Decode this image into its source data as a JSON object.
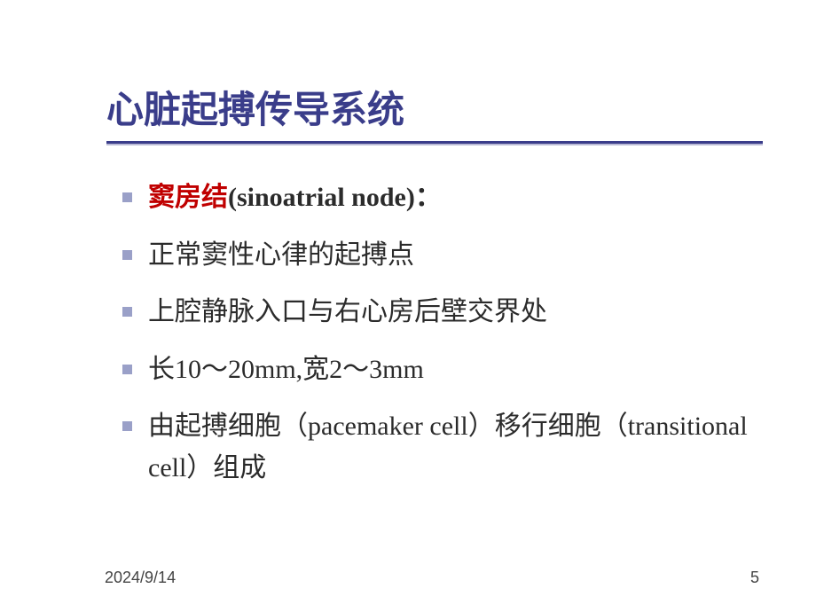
{
  "slide": {
    "title": "心脏起搏传导系统",
    "title_color": "#3a3d8a",
    "underline_color": "#3a3d8a",
    "bullet_marker_color": "#9aa0c8",
    "highlight_color": "#c00000",
    "text_color": "#2b2b2b",
    "background_color": "#ffffff",
    "bullets": [
      {
        "text_highlight": "窦房结",
        "text_bold": "(sinoatrial node)：",
        "is_header": true
      },
      {
        "text": "正常窦性心律的起搏点"
      },
      {
        "text": "上腔静脉入口与右心房后壁交界处"
      },
      {
        "text": "长10～20mm,宽2～3mm"
      },
      {
        "text": "由起搏细胞（pacemaker cell）移行细胞（transitional cell）组成"
      }
    ],
    "footer_date": "2024/9/14",
    "footer_page": "5",
    "title_fontsize": 42,
    "body_fontsize": 30,
    "footer_fontsize": 18
  }
}
